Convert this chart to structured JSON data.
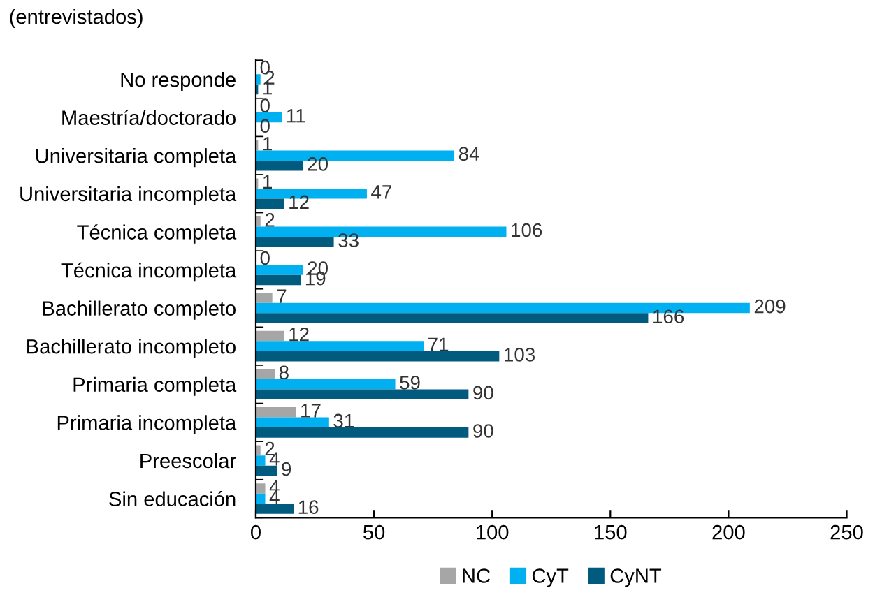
{
  "chart_data": {
    "type": "bar",
    "orientation": "horizontal",
    "title": "(entrevistados)",
    "categories": [
      "No responde",
      "Maestría/doctorado",
      "Universitaria completa",
      "Universitaria incompleta",
      "Técnica completa",
      "Técnica incompleta",
      "Bachillerato completo",
      "Bachillerato incompleto",
      "Primaria completa",
      "Primaria incompleta",
      "Preescolar",
      "Sin educación"
    ],
    "series": [
      {
        "name": "NC",
        "color": "#a6a6a6",
        "values": [
          0,
          0,
          1,
          1,
          2,
          0,
          7,
          12,
          8,
          17,
          2,
          4
        ]
      },
      {
        "name": "CyT",
        "color": "#00b0f0",
        "values": [
          2,
          11,
          84,
          47,
          106,
          20,
          209,
          71,
          59,
          31,
          4,
          4
        ]
      },
      {
        "name": "CyNT",
        "color": "#005b7f",
        "values": [
          1,
          0,
          20,
          12,
          33,
          19,
          166,
          103,
          90,
          90,
          9,
          16
        ]
      }
    ],
    "xlim": [
      0,
      250
    ],
    "xticks": [
      0,
      50,
      100,
      150,
      200,
      250
    ],
    "data_labels": true,
    "grid": false,
    "legend": "bottom"
  }
}
